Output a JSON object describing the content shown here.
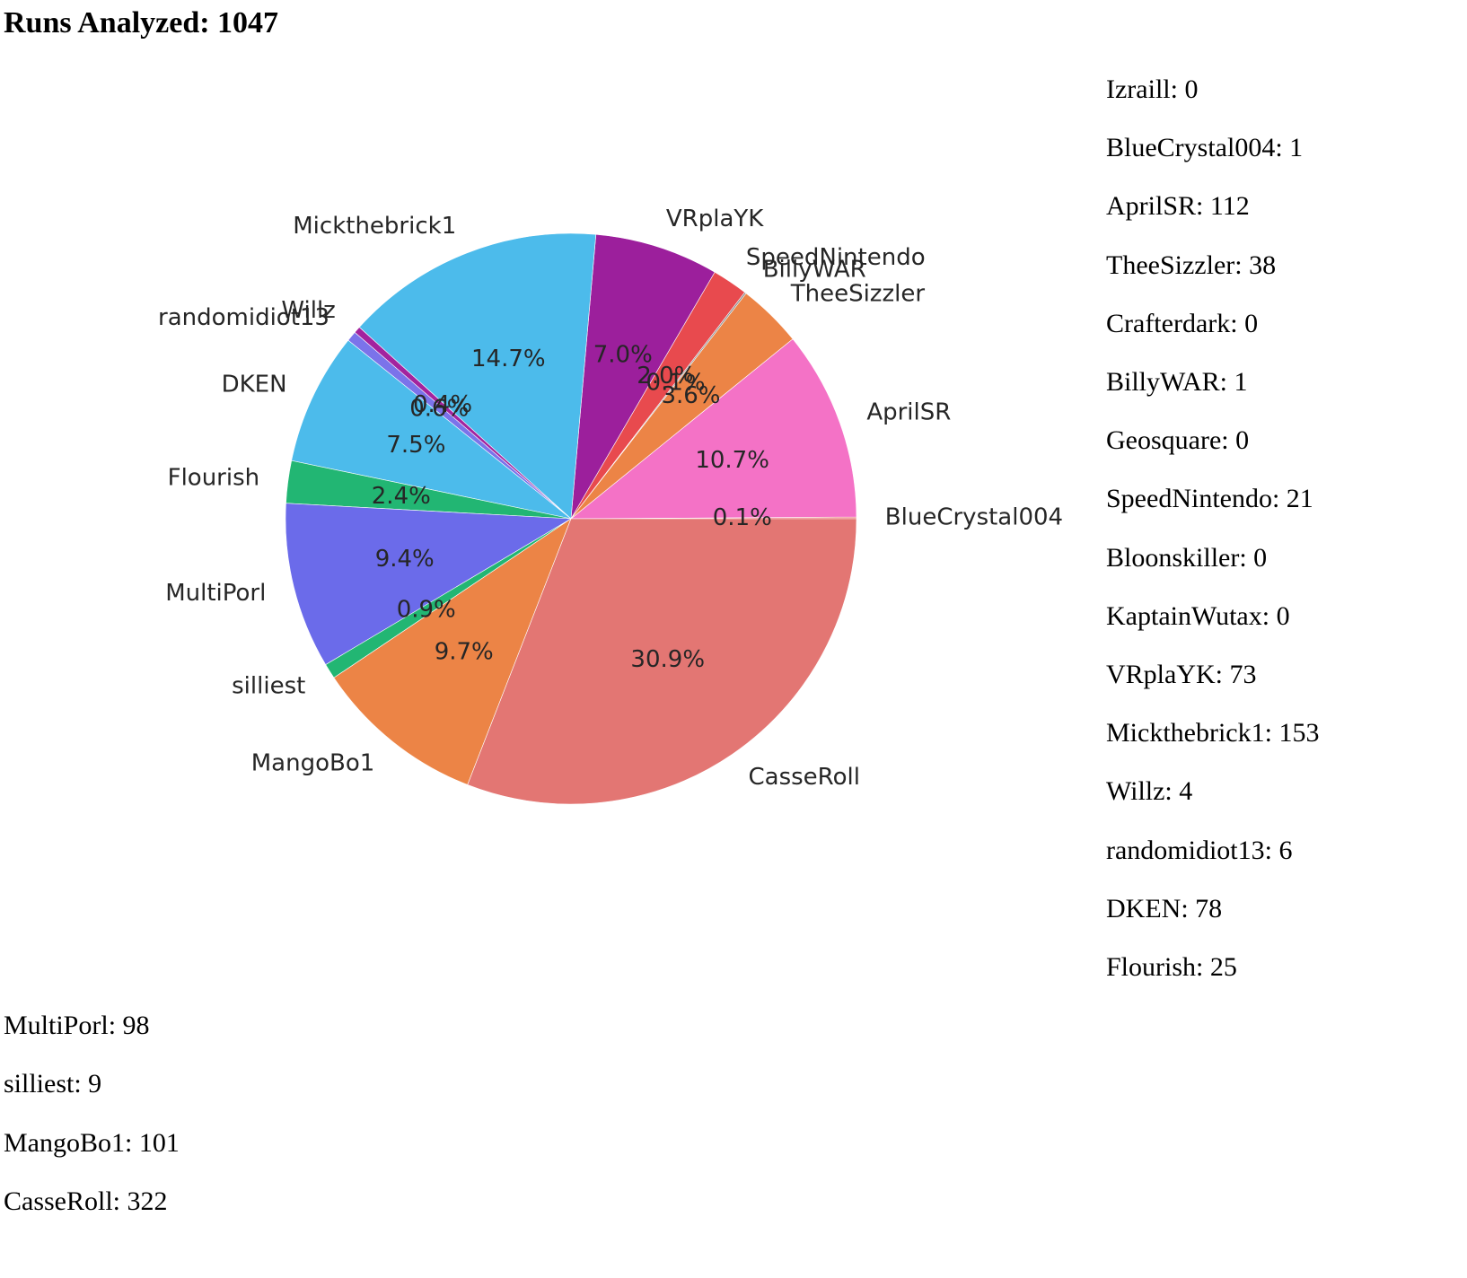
{
  "page": {
    "title": "Runs Analyzed: 1047"
  },
  "counts": [
    {
      "name": "Izraill",
      "value": 0,
      "text": "Izraill: 0"
    },
    {
      "name": "BlueCrystal004",
      "value": 1,
      "text": "BlueCrystal004: 1"
    },
    {
      "name": "AprilSR",
      "value": 112,
      "text": "AprilSR: 112"
    },
    {
      "name": "TheeSizzler",
      "value": 38,
      "text": "TheeSizzler: 38"
    },
    {
      "name": "Crafterdark",
      "value": 0,
      "text": "Crafterdark: 0"
    },
    {
      "name": "BillyWAR",
      "value": 1,
      "text": "BillyWAR: 1"
    },
    {
      "name": "Geosquare",
      "value": 0,
      "text": "Geosquare: 0"
    },
    {
      "name": "SpeedNintendo",
      "value": 21,
      "text": "SpeedNintendo: 21"
    },
    {
      "name": "Bloonskiller",
      "value": 0,
      "text": "Bloonskiller: 0"
    },
    {
      "name": "KaptainWutax",
      "value": 0,
      "text": "KaptainWutax: 0"
    },
    {
      "name": "VRplaYK",
      "value": 73,
      "text": "VRplaYK: 73"
    },
    {
      "name": "Mickthebrick1",
      "value": 153,
      "text": "Mickthebrick1: 153"
    },
    {
      "name": "Willz",
      "value": 4,
      "text": "Willz: 4"
    },
    {
      "name": "randomidiot13",
      "value": 6,
      "text": "randomidiot13: 6"
    },
    {
      "name": "DKEN",
      "value": 78,
      "text": "DKEN: 78"
    },
    {
      "name": "Flourish",
      "value": 25,
      "text": "Flourish: 25"
    },
    {
      "name": "MultiPorl",
      "value": 98,
      "text": "MultiPorl: 98"
    },
    {
      "name": "silliest",
      "value": 9,
      "text": "silliest: 9"
    },
    {
      "name": "MangoBo1",
      "value": 101,
      "text": "MangoBo1: 101"
    },
    {
      "name": "CasseRoll",
      "value": 322,
      "text": "CasseRoll: 322"
    }
  ],
  "chart_data": {
    "type": "pie",
    "title": "",
    "start_angle_deg": 0,
    "direction": "counterclockwise",
    "slices": [
      {
        "label": "BlueCrystal004",
        "value": 1,
        "pct_label": "0.1%",
        "color": "#e87070"
      },
      {
        "label": "AprilSR",
        "value": 112,
        "pct_label": "10.7%",
        "color": "#f472c6"
      },
      {
        "label": "TheeSizzler",
        "value": 38,
        "pct_label": "3.6%",
        "color": "#ec8446"
      },
      {
        "label": "BillyWAR",
        "value": 1,
        "pct_label": "0.1%",
        "color": "#888888"
      },
      {
        "label": "SpeedNintendo",
        "value": 21,
        "pct_label": "2.0%",
        "color": "#e84a4e"
      },
      {
        "label": "VRplaYK",
        "value": 73,
        "pct_label": "7.0%",
        "color": "#9c1f9c"
      },
      {
        "label": "Mickthebrick1",
        "value": 153,
        "pct_label": "14.7%",
        "color": "#4cbbeb"
      },
      {
        "label": "Willz",
        "value": 4,
        "pct_label": "0.4%",
        "color": "#a3239e"
      },
      {
        "label": "randomidiot13",
        "value": 6,
        "pct_label": "0.6%",
        "color": "#7b73ea"
      },
      {
        "label": "DKEN",
        "value": 78,
        "pct_label": "7.5%",
        "color": "#4cbbeb"
      },
      {
        "label": "Flourish",
        "value": 25,
        "pct_label": "2.4%",
        "color": "#22b673"
      },
      {
        "label": "MultiPorl",
        "value": 98,
        "pct_label": "9.4%",
        "color": "#6b6bea"
      },
      {
        "label": "silliest",
        "value": 9,
        "pct_label": "0.9%",
        "color": "#22b673"
      },
      {
        "label": "MangoBo1",
        "value": 101,
        "pct_label": "9.7%",
        "color": "#ec8446"
      },
      {
        "label": "CasseRoll",
        "value": 322,
        "pct_label": "30.9%",
        "color": "#e37673"
      }
    ]
  }
}
